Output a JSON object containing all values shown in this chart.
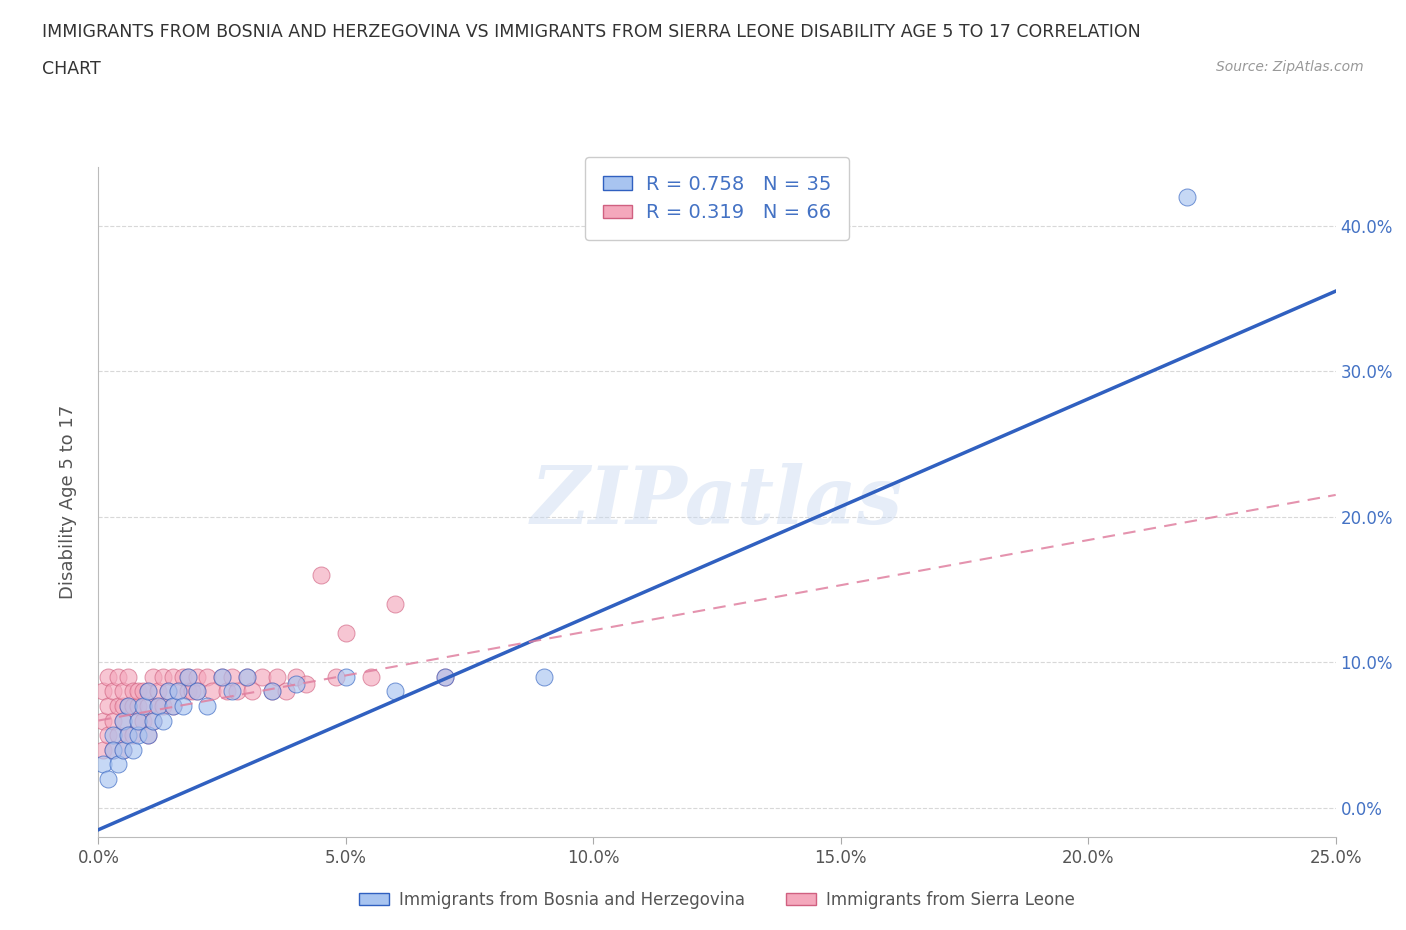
{
  "title_line1": "IMMIGRANTS FROM BOSNIA AND HERZEGOVINA VS IMMIGRANTS FROM SIERRA LEONE DISABILITY AGE 5 TO 17 CORRELATION",
  "title_line2": "CHART",
  "source": "Source: ZipAtlas.com",
  "ylabel": "Disability Age 5 to 17",
  "xlim": [
    0.0,
    0.25
  ],
  "ylim": [
    -0.02,
    0.44
  ],
  "R_bosnia": 0.758,
  "N_bosnia": 35,
  "R_sierra": 0.319,
  "N_sierra": 66,
  "color_bosnia": "#a8c4f0",
  "color_sierra": "#f4a8bc",
  "line_color_bosnia": "#3060c0",
  "line_color_sierra": "#e080a0",
  "watermark_text": "ZIPatlas",
  "legend_label_bosnia": "Immigrants from Bosnia and Herzegovina",
  "legend_label_sierra": "Immigrants from Sierra Leone",
  "background_color": "#ffffff",
  "grid_color": "#d8d8d8",
  "bosnia_scatter_x": [
    0.001,
    0.002,
    0.003,
    0.003,
    0.004,
    0.005,
    0.005,
    0.006,
    0.006,
    0.007,
    0.008,
    0.008,
    0.009,
    0.01,
    0.01,
    0.011,
    0.012,
    0.013,
    0.014,
    0.015,
    0.016,
    0.017,
    0.018,
    0.02,
    0.022,
    0.025,
    0.027,
    0.03,
    0.035,
    0.04,
    0.05,
    0.06,
    0.07,
    0.09,
    0.22
  ],
  "bosnia_scatter_y": [
    0.03,
    0.02,
    0.05,
    0.04,
    0.03,
    0.06,
    0.04,
    0.05,
    0.07,
    0.04,
    0.05,
    0.06,
    0.07,
    0.05,
    0.08,
    0.06,
    0.07,
    0.06,
    0.08,
    0.07,
    0.08,
    0.07,
    0.09,
    0.08,
    0.07,
    0.09,
    0.08,
    0.09,
    0.08,
    0.085,
    0.09,
    0.08,
    0.09,
    0.09,
    0.42
  ],
  "sierra_scatter_x": [
    0.001,
    0.001,
    0.001,
    0.002,
    0.002,
    0.002,
    0.003,
    0.003,
    0.003,
    0.004,
    0.004,
    0.004,
    0.005,
    0.005,
    0.005,
    0.005,
    0.006,
    0.006,
    0.006,
    0.007,
    0.007,
    0.007,
    0.008,
    0.008,
    0.008,
    0.009,
    0.009,
    0.01,
    0.01,
    0.01,
    0.011,
    0.011,
    0.012,
    0.012,
    0.013,
    0.013,
    0.014,
    0.015,
    0.015,
    0.016,
    0.017,
    0.018,
    0.018,
    0.019,
    0.02,
    0.02,
    0.022,
    0.023,
    0.025,
    0.026,
    0.027,
    0.028,
    0.03,
    0.031,
    0.033,
    0.035,
    0.036,
    0.038,
    0.04,
    0.042,
    0.045,
    0.048,
    0.05,
    0.055,
    0.06,
    0.07
  ],
  "sierra_scatter_y": [
    0.04,
    0.06,
    0.08,
    0.05,
    0.07,
    0.09,
    0.04,
    0.06,
    0.08,
    0.05,
    0.07,
    0.09,
    0.04,
    0.06,
    0.07,
    0.08,
    0.05,
    0.07,
    0.09,
    0.05,
    0.07,
    0.08,
    0.06,
    0.07,
    0.08,
    0.06,
    0.08,
    0.05,
    0.07,
    0.08,
    0.06,
    0.09,
    0.07,
    0.08,
    0.07,
    0.09,
    0.08,
    0.07,
    0.09,
    0.08,
    0.09,
    0.08,
    0.09,
    0.08,
    0.09,
    0.08,
    0.09,
    0.08,
    0.09,
    0.08,
    0.09,
    0.08,
    0.09,
    0.08,
    0.09,
    0.08,
    0.09,
    0.08,
    0.09,
    0.085,
    0.16,
    0.09,
    0.12,
    0.09,
    0.14,
    0.09
  ],
  "bosnia_line_x0": 0.0,
  "bosnia_line_y0": -0.015,
  "bosnia_line_x1": 0.25,
  "bosnia_line_y1": 0.355,
  "sierra_line_x0": 0.0,
  "sierra_line_y0": 0.06,
  "sierra_line_x1": 0.25,
  "sierra_line_y1": 0.215
}
